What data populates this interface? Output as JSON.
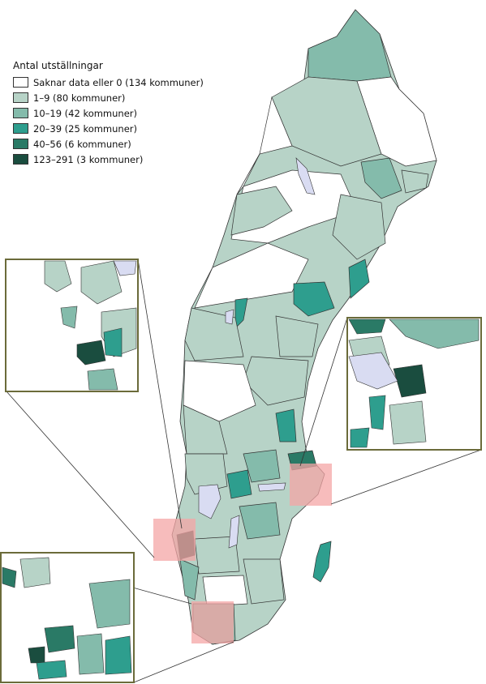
{
  "legend": {
    "title": "Antal utställningar",
    "items": [
      {
        "label": "Saknar data eller 0 (134 kommuner)",
        "color": "#ffffff"
      },
      {
        "label": "1–9 (80 kommuner)",
        "color": "#b7d3c7"
      },
      {
        "label": "10–19 (42 kommuner)",
        "color": "#84bbab"
      },
      {
        "label": "20–39 (25 kommuner)",
        "color": "#2e9e8e"
      },
      {
        "label": "40–56 (6 kommuner)",
        "color": "#2a7a66"
      },
      {
        "label": "123–291 (3 kommuner)",
        "color": "#1a4d3f"
      }
    ]
  },
  "colors": {
    "lake": "#d9dcf2",
    "border": "#333333",
    "inset_frame": "#6b6b3a",
    "highlight": "#f4a6a6"
  }
}
